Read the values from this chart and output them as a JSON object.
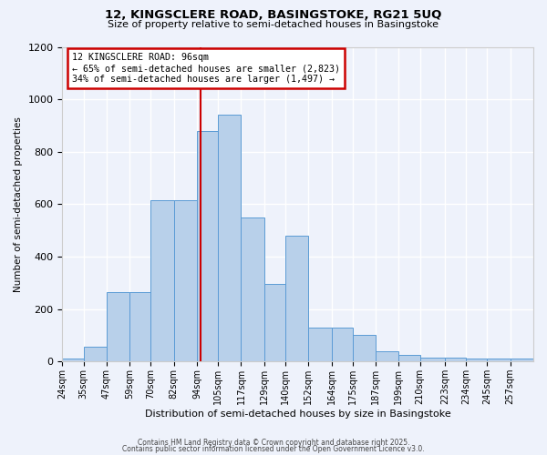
{
  "title1": "12, KINGSCLERE ROAD, BASINGSTOKE, RG21 5UQ",
  "title2": "Size of property relative to semi-detached houses in Basingstoke",
  "xlabel": "Distribution of semi-detached houses by size in Basingstoke",
  "ylabel": "Number of semi-detached properties",
  "bin_edges": [
    24,
    35,
    47,
    59,
    70,
    82,
    94,
    105,
    117,
    129,
    140,
    152,
    164,
    175,
    187,
    199,
    210,
    223,
    234,
    245,
    257,
    269
  ],
  "bin_labels": [
    "24sqm",
    "35sqm",
    "47sqm",
    "59sqm",
    "70sqm",
    "82sqm",
    "94sqm",
    "105sqm",
    "117sqm",
    "129sqm",
    "140sqm",
    "152sqm",
    "164sqm",
    "175sqm",
    "187sqm",
    "199sqm",
    "210sqm",
    "223sqm",
    "234sqm",
    "245sqm",
    "257sqm"
  ],
  "bar_heights": [
    10,
    55,
    265,
    265,
    615,
    615,
    880,
    940,
    550,
    295,
    480,
    130,
    130,
    100,
    40,
    25,
    15,
    15,
    10,
    10,
    10
  ],
  "bar_color": "#b8d0ea",
  "bar_edge_color": "#5b9bd5",
  "property_line_x": 96,
  "annotation_title": "12 KINGSCLERE ROAD: 96sqm",
  "annotation_line1": "← 65% of semi-detached houses are smaller (2,823)",
  "annotation_line2": "34% of semi-detached houses are larger (1,497) →",
  "annotation_box_color": "#ffffff",
  "annotation_box_edge": "#cc0000",
  "vline_color": "#cc0000",
  "ylim": [
    0,
    1200
  ],
  "yticks": [
    0,
    200,
    400,
    600,
    800,
    1000,
    1200
  ],
  "footer1": "Contains HM Land Registry data © Crown copyright and database right 2025.",
  "footer2": "Contains public sector information licensed under the Open Government Licence v3.0.",
  "background_color": "#eef2fb",
  "grid_color": "#ffffff"
}
